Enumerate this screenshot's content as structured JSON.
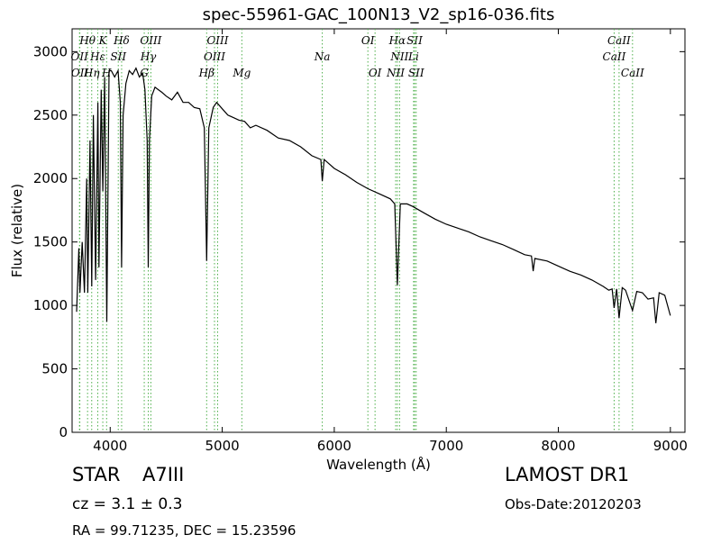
{
  "chart_data": {
    "type": "line",
    "title": "spec-55961-GAC_100N13_V2_sp16-036.fits",
    "x_label": "Wavelength (Å)",
    "y_label": "Flux (relative)",
    "color": "#000000",
    "line_color": "#4daf4a",
    "xlim": [
      3660,
      9130
    ],
    "ylim": [
      0,
      3180
    ],
    "xticks": [
      4000,
      5000,
      6000,
      7000,
      8000,
      9000
    ],
    "yticks": [
      0,
      500,
      1000,
      1500,
      2000,
      2500,
      3000
    ],
    "x": [
      3700,
      3720,
      3730,
      3750,
      3770,
      3790,
      3800,
      3820,
      3835,
      3850,
      3870,
      3890,
      3900,
      3920,
      3934,
      3950,
      3970,
      3990,
      4010,
      4040,
      4070,
      4090,
      4102,
      4115,
      4140,
      4170,
      4200,
      4230,
      4260,
      4290,
      4310,
      4330,
      4340,
      4350,
      4370,
      4400,
      4430,
      4460,
      4500,
      4550,
      4600,
      4650,
      4700,
      4750,
      4800,
      4840,
      4861,
      4880,
      4920,
      4950,
      5000,
      5050,
      5100,
      5150,
      5200,
      5250,
      5300,
      5400,
      5500,
      5600,
      5700,
      5800,
      5880,
      5893,
      5910,
      6000,
      6100,
      6200,
      6300,
      6400,
      6500,
      6540,
      6563,
      6590,
      6650,
      6700,
      6800,
      6900,
      7000,
      7100,
      7200,
      7300,
      7400,
      7500,
      7600,
      7700,
      7760,
      7775,
      7790,
      7900,
      8000,
      8100,
      8200,
      8300,
      8400,
      8450,
      8480,
      8498,
      8520,
      8542,
      8570,
      8600,
      8662,
      8700,
      8750,
      8800,
      8850,
      8870,
      8900,
      8950,
      9000
    ],
    "values": [
      950,
      1450,
      1100,
      1500,
      1100,
      2000,
      1100,
      2300,
      1150,
      2500,
      1200,
      2600,
      1300,
      2700,
      1900,
      2800,
      870,
      2850,
      2850,
      2800,
      2850,
      2600,
      1300,
      2500,
      2750,
      2850,
      2820,
      2870,
      2800,
      2830,
      2700,
      2300,
      1300,
      2300,
      2650,
      2720,
      2700,
      2680,
      2650,
      2620,
      2680,
      2600,
      2600,
      2560,
      2550,
      2400,
      1350,
      2400,
      2560,
      2600,
      2550,
      2500,
      2480,
      2460,
      2450,
      2400,
      2420,
      2380,
      2320,
      2300,
      2250,
      2180,
      2150,
      1980,
      2150,
      2080,
      2030,
      1970,
      1920,
      1880,
      1840,
      1800,
      1160,
      1800,
      1800,
      1780,
      1730,
      1680,
      1640,
      1610,
      1580,
      1540,
      1510,
      1480,
      1440,
      1400,
      1390,
      1270,
      1370,
      1350,
      1310,
      1270,
      1240,
      1200,
      1150,
      1120,
      1130,
      980,
      1130,
      900,
      1140,
      1120,
      960,
      1110,
      1100,
      1050,
      1060,
      860,
      1100,
      1080,
      920
    ],
    "lines": [
      {
        "label": "Hθ",
        "x": 3798
      },
      {
        "label": "K",
        "x": 3934
      },
      {
        "label": "Hδ",
        "x": 4102
      },
      {
        "label": "OIII",
        "x": 4363
      },
      {
        "label": "OIII",
        "x": 4959
      },
      {
        "label": "OI",
        "x": 6300
      },
      {
        "label": "Hα",
        "x": 6563
      },
      {
        "label": "SII",
        "x": 6717
      },
      {
        "label": "CaII",
        "x": 8542
      },
      {
        "label": "OII",
        "x": 3726
      },
      {
        "label": "Hε",
        "x": 3889
      },
      {
        "label": "SII",
        "x": 4072
      },
      {
        "label": "Hγ",
        "x": 4340
      },
      {
        "label": "OIII",
        "x": 4931
      },
      {
        "label": "Na",
        "x": 5893
      },
      {
        "label": "NII",
        "x": 6583
      },
      {
        "label": "Li",
        "x": 6708
      },
      {
        "label": "CaII",
        "x": 8498
      },
      {
        "label": "OII",
        "x": 3729
      },
      {
        "label": "Hη",
        "x": 3835
      },
      {
        "label": "H",
        "x": 3968
      },
      {
        "label": "G",
        "x": 4304
      },
      {
        "label": "Hβ",
        "x": 4861
      },
      {
        "label": "Mg",
        "x": 5175
      },
      {
        "label": "OI",
        "x": 6364
      },
      {
        "label": "NII",
        "x": 6548
      },
      {
        "label": "SII",
        "x": 6731
      },
      {
        "label": "CaII",
        "x": 8662
      }
    ],
    "annotations": {
      "object": "STAR",
      "class": "A7III",
      "cz": "cz = 3.1 ± 0.3",
      "coords": "RA = 99.71235, DEC = 15.23596",
      "survey": "LAMOST DR1",
      "date": "Obs-Date:20120203"
    }
  }
}
